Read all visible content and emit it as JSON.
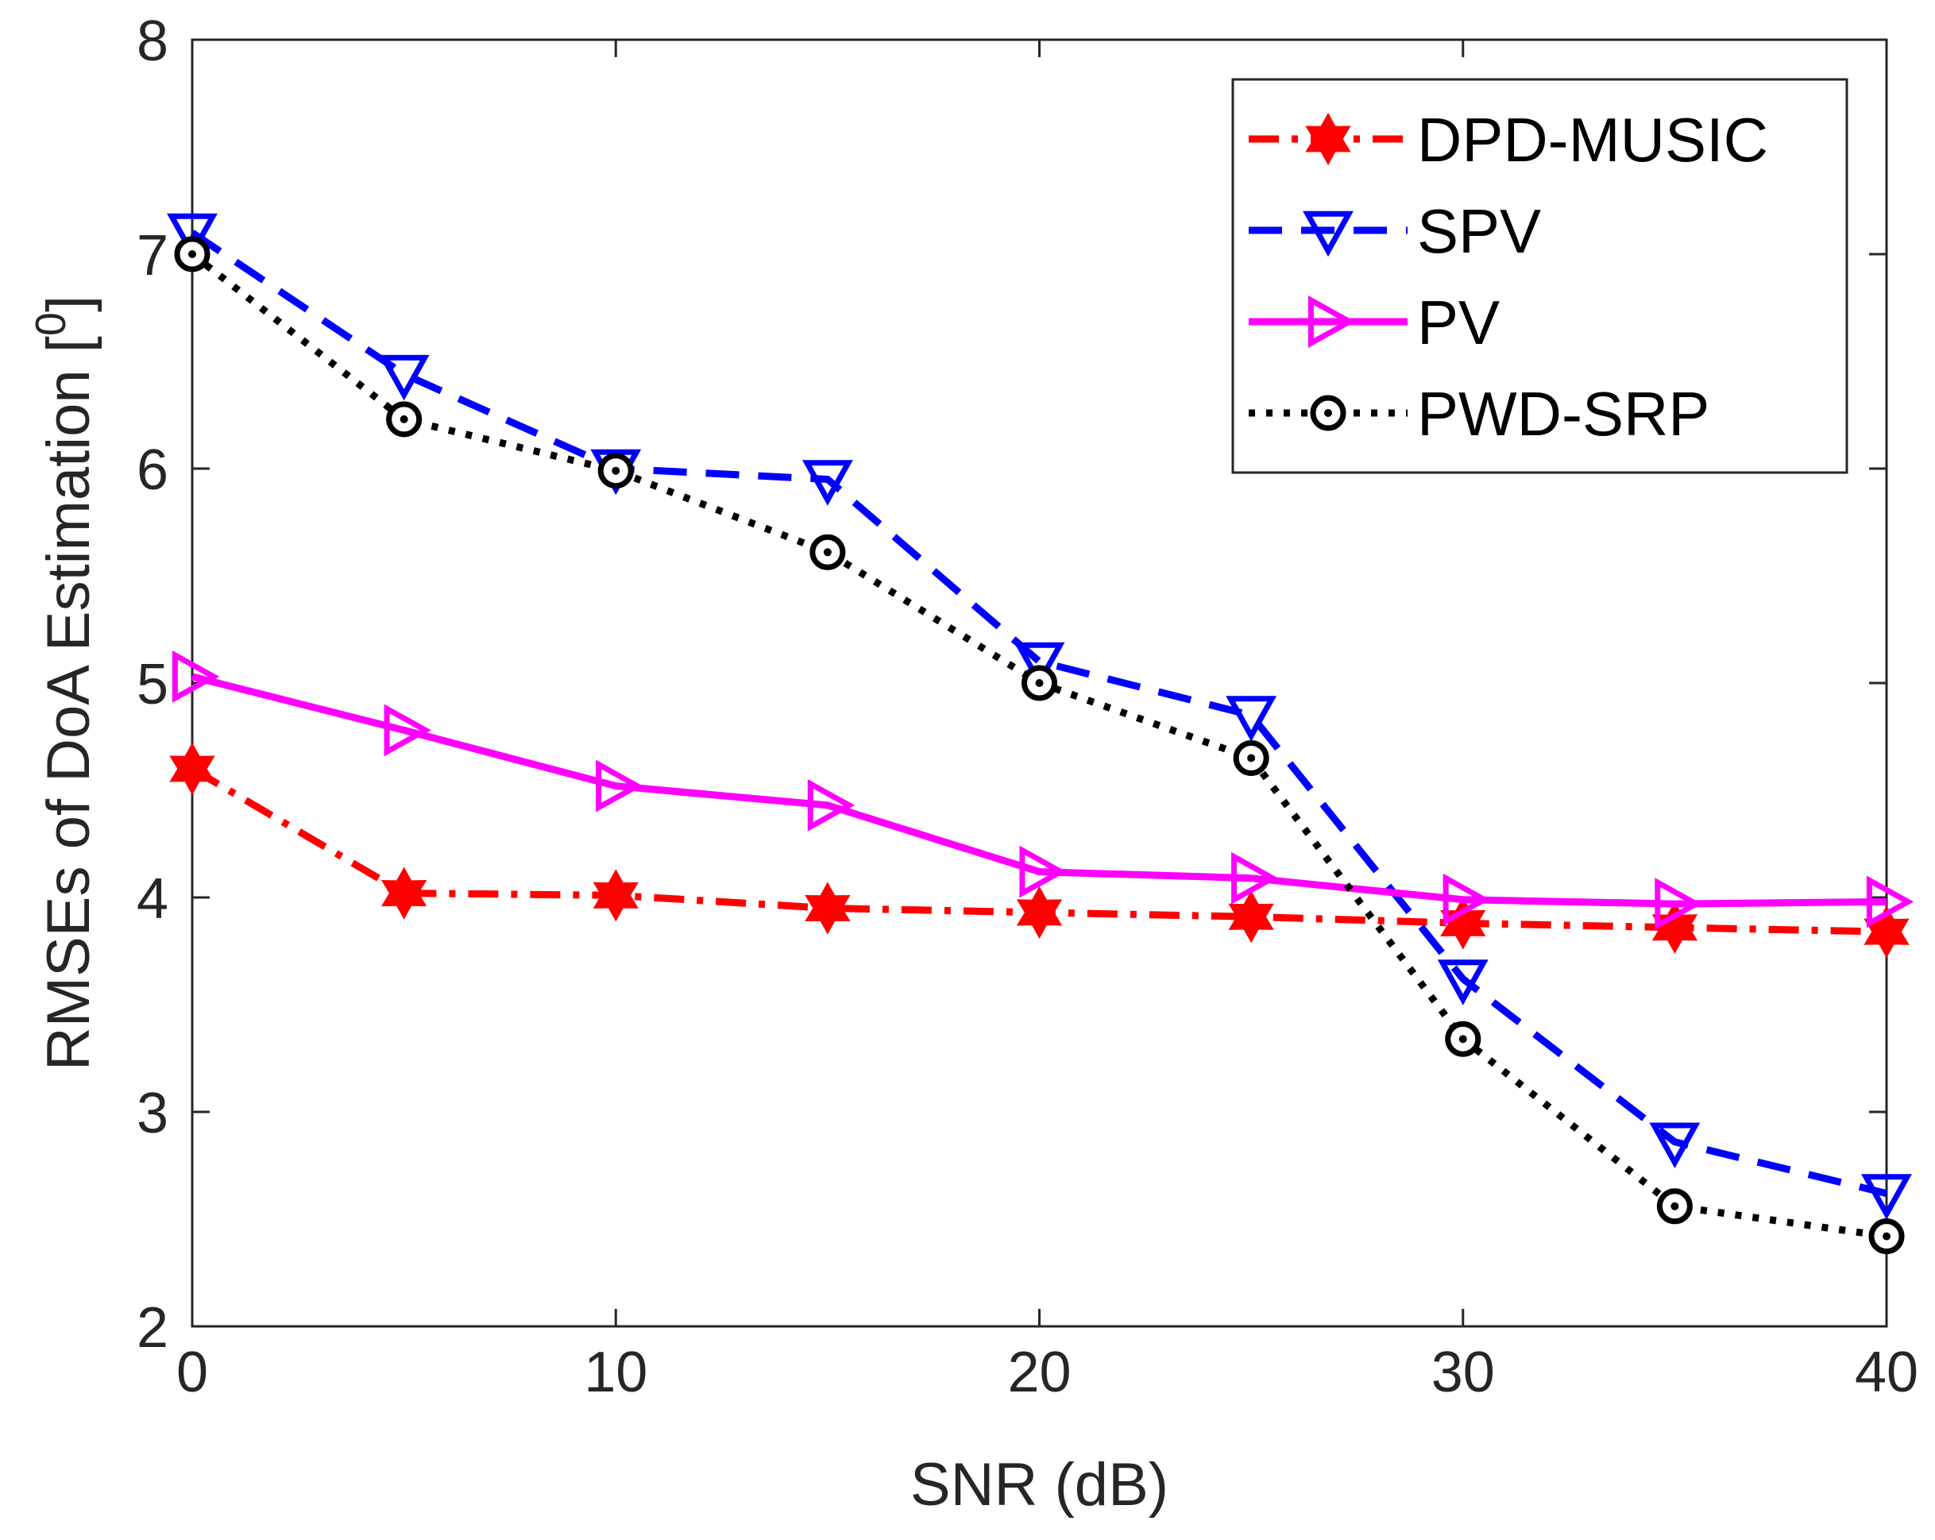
{
  "chart_data": {
    "type": "line",
    "title": "",
    "xlabel": "SNR (dB)",
    "ylabel": "RMSEs of DoA Estimation [",
    "ylabel_sup": "0",
    "ylabel_suffix": "]",
    "xlim": [
      0,
      40
    ],
    "ylim": [
      2,
      8
    ],
    "xticks": [
      0,
      10,
      20,
      30,
      40
    ],
    "yticks": [
      2,
      3,
      4,
      5,
      6,
      7,
      8
    ],
    "x": [
      0,
      5,
      10,
      15,
      20,
      25,
      30,
      35,
      40
    ],
    "grid": false,
    "legend_position": "top-right",
    "series": [
      {
        "name": "DPD-MUSIC",
        "color": "#ff0000",
        "line_style": "dash-dot",
        "marker": "hexagram",
        "values": [
          4.6,
          4.02,
          4.01,
          3.95,
          3.93,
          3.91,
          3.88,
          3.86,
          3.84
        ]
      },
      {
        "name": "SPV",
        "color": "#0000ff",
        "line_style": "dashed",
        "marker": "triangle-down",
        "values": [
          7.1,
          6.44,
          6.0,
          5.95,
          5.1,
          4.85,
          3.62,
          2.86,
          2.62
        ]
      },
      {
        "name": "PV",
        "color": "#ff00ff",
        "line_style": "solid",
        "marker": "triangle-right",
        "values": [
          5.03,
          4.78,
          4.52,
          4.43,
          4.12,
          4.09,
          3.99,
          3.97,
          3.98
        ]
      },
      {
        "name": "PWD-SRP",
        "color": "#000000",
        "line_style": "dotted",
        "marker": "circle-dot",
        "values": [
          7.0,
          6.23,
          5.99,
          5.61,
          5.0,
          4.65,
          3.34,
          2.56,
          2.42
        ]
      }
    ]
  }
}
